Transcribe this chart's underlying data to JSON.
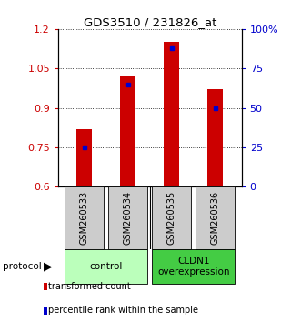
{
  "title": "GDS3510 / 231826_at",
  "samples": [
    "GSM260533",
    "GSM260534",
    "GSM260535",
    "GSM260536"
  ],
  "transformed_counts": [
    0.82,
    1.02,
    1.15,
    0.97
  ],
  "percentile_ranks": [
    0.25,
    0.65,
    0.88,
    0.5
  ],
  "bar_color": "#cc0000",
  "marker_color": "#0000cc",
  "ylim_left": [
    0.6,
    1.2
  ],
  "ylim_right": [
    0.0,
    1.0
  ],
  "yticks_left": [
    0.6,
    0.75,
    0.9,
    1.05,
    1.2
  ],
  "ytick_labels_left": [
    "0.6",
    "0.75",
    "0.9",
    "1.05",
    "1.2"
  ],
  "yticks_right": [
    0.0,
    0.25,
    0.5,
    0.75,
    1.0
  ],
  "ytick_labels_right": [
    "0",
    "25",
    "50",
    "75",
    "100%"
  ],
  "groups": [
    {
      "label": "control",
      "indices": [
        0,
        1
      ],
      "color": "#bbffbb"
    },
    {
      "label": "CLDN1\noverexpression",
      "indices": [
        2,
        3
      ],
      "color": "#44cc44"
    }
  ],
  "sample_bg_color": "#cccccc",
  "protocol_label": "protocol",
  "legend_items": [
    {
      "color": "#cc0000",
      "label": "transformed count"
    },
    {
      "color": "#0000cc",
      "label": "percentile rank within the sample"
    }
  ],
  "bar_bottom": 0.6,
  "bar_width": 0.35,
  "left_axis_color": "#cc0000",
  "right_axis_color": "#0000cc"
}
